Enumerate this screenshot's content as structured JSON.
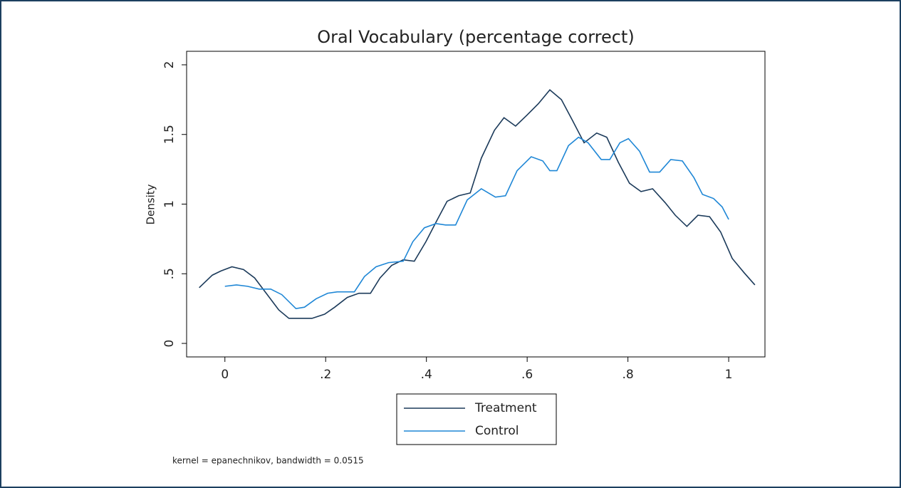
{
  "chart_data": {
    "type": "line",
    "title": "Oral Vocabulary (percentage correct)",
    "y_label": "Density",
    "note": "kernel = epanechnikov, bandwidth = 0.0515",
    "xlim": [
      -0.076,
      1.072
    ],
    "ylim": [
      -0.097,
      2.097
    ],
    "xticks": [
      0,
      {
        "value": 0.2,
        "label": ".2"
      },
      {
        "value": 0.4,
        "label": ".4"
      },
      {
        "value": 0.6,
        "label": ".6"
      },
      {
        "value": 0.8,
        "label": ".8"
      },
      1
    ],
    "yticks": [
      0,
      {
        "value": 0.5,
        "label": ".5"
      },
      1,
      1.5,
      2
    ],
    "grid": false,
    "legend": "bottom",
    "series": [
      {
        "name": "Treatment",
        "color": "#1b3a5a",
        "x": [
          -0.051,
          -0.025,
          -0.008,
          0.014,
          0.037,
          0.059,
          0.082,
          0.107,
          0.127,
          0.144,
          0.173,
          0.198,
          0.218,
          0.243,
          0.266,
          0.289,
          0.308,
          0.331,
          0.354,
          0.376,
          0.399,
          0.419,
          0.441,
          0.464,
          0.487,
          0.509,
          0.535,
          0.554,
          0.577,
          0.6,
          0.622,
          0.645,
          0.668,
          0.69,
          0.713,
          0.738,
          0.758,
          0.781,
          0.803,
          0.826,
          0.849,
          0.874,
          0.894,
          0.917,
          0.939,
          0.962,
          0.984,
          1.007,
          1.03,
          1.052
        ],
        "values": [
          0.4,
          0.49,
          0.52,
          0.55,
          0.53,
          0.47,
          0.36,
          0.24,
          0.18,
          0.18,
          0.18,
          0.21,
          0.26,
          0.33,
          0.36,
          0.36,
          0.47,
          0.56,
          0.6,
          0.59,
          0.73,
          0.87,
          1.02,
          1.06,
          1.08,
          1.33,
          1.53,
          1.62,
          1.56,
          1.64,
          1.72,
          1.82,
          1.75,
          1.6,
          1.44,
          1.51,
          1.48,
          1.3,
          1.15,
          1.09,
          1.11,
          1.01,
          0.92,
          0.84,
          0.92,
          0.91,
          0.8,
          0.61,
          0.51,
          0.42
        ]
      },
      {
        "name": "Control",
        "color": "#1f87d6",
        "x": [
          0,
          0.023,
          0.045,
          0.068,
          0.091,
          0.113,
          0.141,
          0.158,
          0.181,
          0.204,
          0.223,
          0.257,
          0.277,
          0.3,
          0.325,
          0.354,
          0.373,
          0.396,
          0.419,
          0.438,
          0.458,
          0.481,
          0.509,
          0.537,
          0.557,
          0.58,
          0.608,
          0.631,
          0.645,
          0.659,
          0.682,
          0.702,
          0.721,
          0.747,
          0.764,
          0.784,
          0.801,
          0.823,
          0.843,
          0.863,
          0.885,
          0.908,
          0.931,
          0.948,
          0.97,
          0.987,
          1.0
        ],
        "values": [
          0.41,
          0.42,
          0.41,
          0.39,
          0.39,
          0.35,
          0.25,
          0.26,
          0.32,
          0.36,
          0.37,
          0.37,
          0.48,
          0.55,
          0.58,
          0.59,
          0.73,
          0.83,
          0.86,
          0.85,
          0.85,
          1.03,
          1.11,
          1.05,
          1.06,
          1.24,
          1.34,
          1.31,
          1.24,
          1.24,
          1.42,
          1.48,
          1.44,
          1.32,
          1.32,
          1.44,
          1.47,
          1.38,
          1.23,
          1.23,
          1.32,
          1.31,
          1.19,
          1.07,
          1.04,
          0.98,
          0.89
        ]
      }
    ]
  }
}
